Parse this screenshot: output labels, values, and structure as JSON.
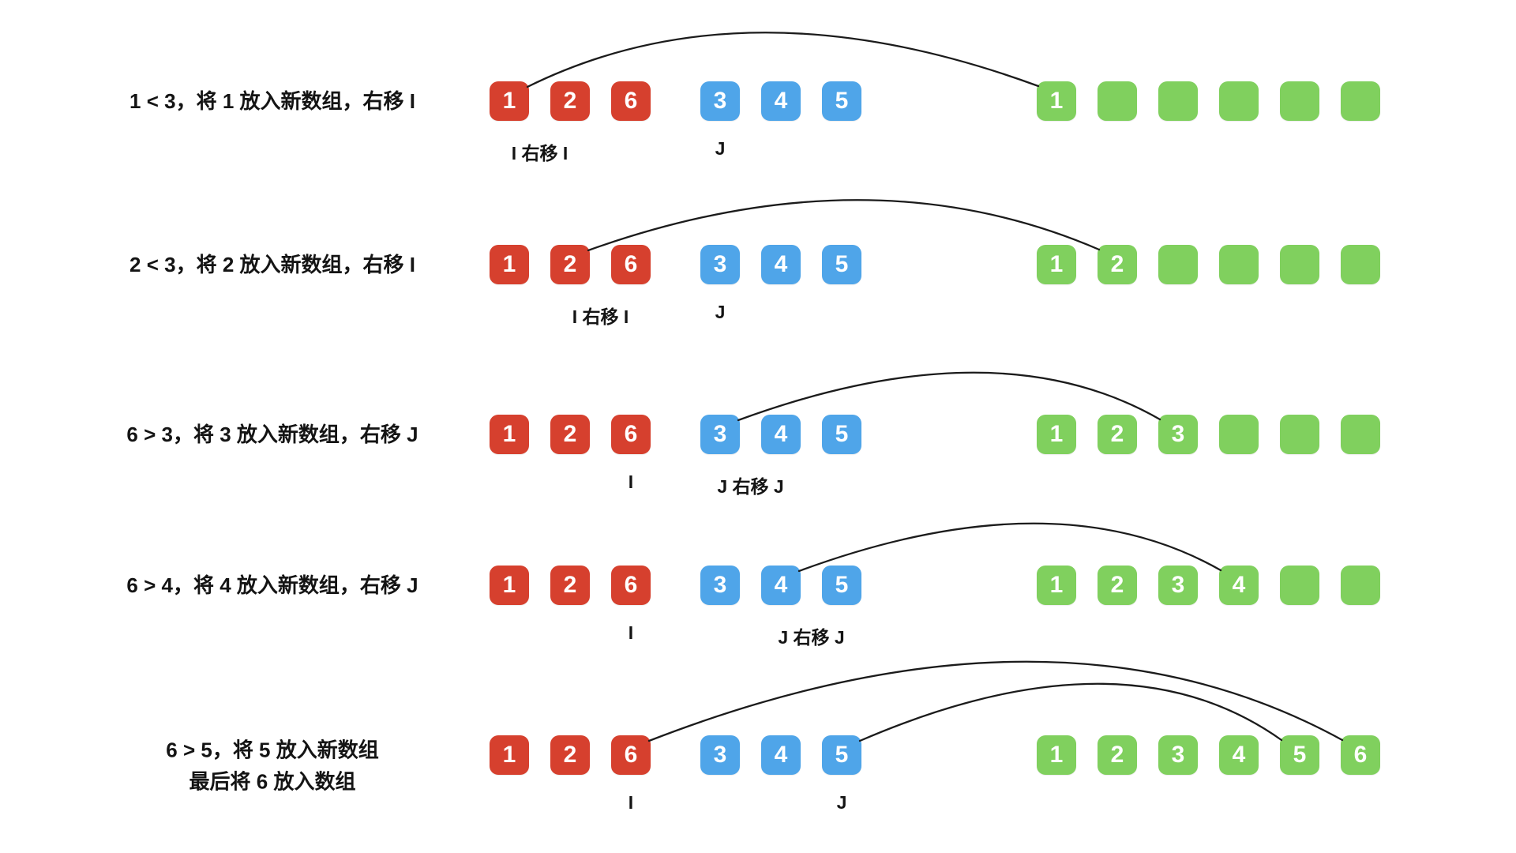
{
  "colors": {
    "left_array_box": "#d6402e",
    "right_array_box": "#4fa5e9",
    "new_array_box": "#80d05e",
    "arrow_line": "#1b1b1b",
    "text": "#141414",
    "background": "#ffffff"
  },
  "rows": [
    {
      "label_lines": [
        "1 < 3，将 1 放入新数组，右移 I"
      ],
      "left_boxes": [
        "1",
        "2",
        "6"
      ],
      "right_boxes": [
        "3",
        "4",
        "5"
      ],
      "new_boxes": [
        "1",
        "",
        "",
        "",
        "",
        ""
      ],
      "pointer_labels": [
        {
          "text": "I 右移 I",
          "array": "left",
          "position": 0.5
        },
        {
          "text": "J",
          "array": "right",
          "position": 0
        }
      ],
      "arcs": [
        {
          "from_array": "left",
          "from_index": 0,
          "to_new_index": 0
        }
      ]
    },
    {
      "label_lines": [
        "2 < 3，将 2 放入新数组，右移 I"
      ],
      "left_boxes": [
        "1",
        "2",
        "6"
      ],
      "right_boxes": [
        "3",
        "4",
        "5"
      ],
      "new_boxes": [
        "1",
        "2",
        "",
        "",
        "",
        ""
      ],
      "pointer_labels": [
        {
          "text": "I 右移 I",
          "array": "left",
          "position": 1.5
        },
        {
          "text": "J",
          "array": "right",
          "position": 0
        }
      ],
      "arcs": [
        {
          "from_array": "left",
          "from_index": 1,
          "to_new_index": 1
        }
      ]
    },
    {
      "label_lines": [
        "6 > 3，将 3 放入新数组，右移 J"
      ],
      "left_boxes": [
        "1",
        "2",
        "6"
      ],
      "right_boxes": [
        "3",
        "4",
        "5"
      ],
      "new_boxes": [
        "1",
        "2",
        "3",
        "",
        "",
        ""
      ],
      "pointer_labels": [
        {
          "text": "I",
          "array": "left",
          "position": 2
        },
        {
          "text": "J 右移 J",
          "array": "right",
          "position": 0.5
        }
      ],
      "arcs": [
        {
          "from_array": "right",
          "from_index": 0,
          "to_new_index": 2
        }
      ]
    },
    {
      "label_lines": [
        "6 > 4，将 4 放入新数组，右移 J"
      ],
      "left_boxes": [
        "1",
        "2",
        "6"
      ],
      "right_boxes": [
        "3",
        "4",
        "5"
      ],
      "new_boxes": [
        "1",
        "2",
        "3",
        "4",
        "",
        ""
      ],
      "pointer_labels": [
        {
          "text": "I",
          "array": "left",
          "position": 2
        },
        {
          "text": "J 右移 J",
          "array": "right",
          "position": 1.5
        }
      ],
      "arcs": [
        {
          "from_array": "right",
          "from_index": 1,
          "to_new_index": 3
        }
      ]
    },
    {
      "label_lines": [
        "6 > 5，将 5 放入新数组",
        "最后将 6 放入数组"
      ],
      "left_boxes": [
        "1",
        "2",
        "6"
      ],
      "right_boxes": [
        "3",
        "4",
        "5"
      ],
      "new_boxes": [
        "1",
        "2",
        "3",
        "4",
        "5",
        "6"
      ],
      "pointer_labels": [
        {
          "text": "I",
          "array": "left",
          "position": 2
        },
        {
          "text": "J",
          "array": "right",
          "position": 2
        }
      ],
      "arcs": [
        {
          "from_array": "left",
          "from_index": 2,
          "to_new_index": 5
        },
        {
          "from_array": "right",
          "from_index": 2,
          "to_new_index": 4
        }
      ]
    }
  ]
}
